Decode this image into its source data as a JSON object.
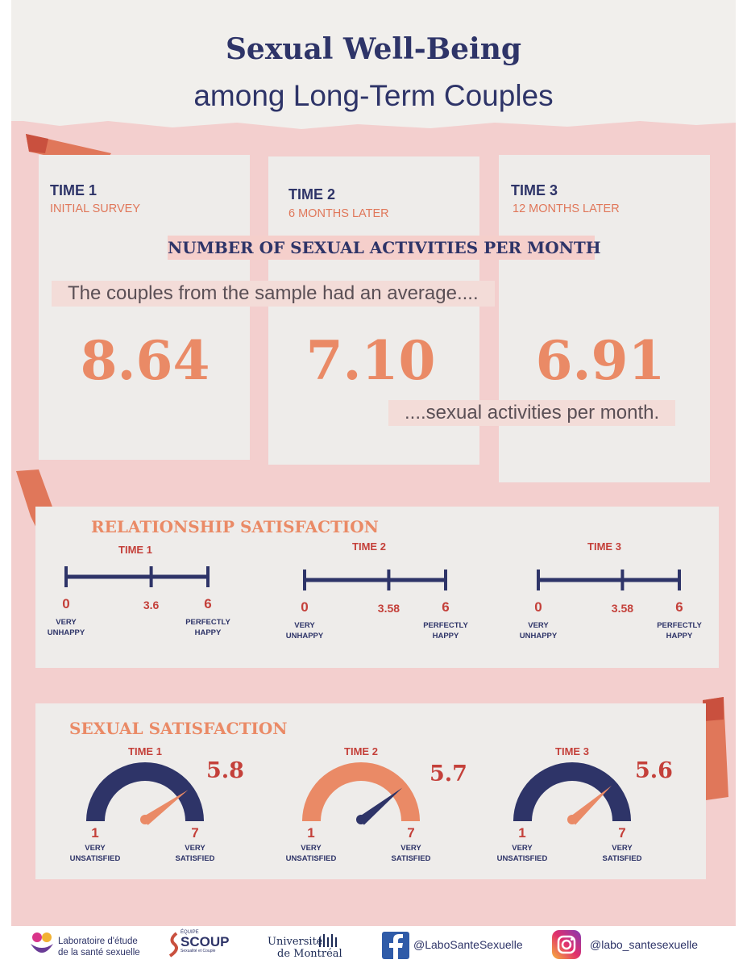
{
  "header": {
    "title": "Sexual Well-Being",
    "subtitle": "among Long-Term Couples"
  },
  "times": [
    {
      "label": "TIME 1",
      "sub": "INITIAL SURVEY"
    },
    {
      "label": "TIME 2",
      "sub": "6 MONTHS LATER"
    },
    {
      "label": "TIME 3",
      "sub": "12 MONTHS LATER"
    }
  ],
  "activities": {
    "banner": "NUMBER OF  SEXUAL ACTIVITIES PER MONTH",
    "intro": "The couples from the sample had an average....",
    "values": [
      "8.64",
      "7.10",
      "6.91"
    ],
    "outro": "....sexual activities per month."
  },
  "relationship": {
    "title": "RELATIONSHIP SATISFACTION",
    "scale_min": "0",
    "scale_max": "6",
    "min_label_line1": "VERY",
    "min_label_line2": "UNHAPPY",
    "max_label_line1": "PERFECTLY",
    "max_label_line2": "HAPPY",
    "items": [
      {
        "time": "TIME 1",
        "value": "3.6",
        "numeric": 3.6
      },
      {
        "time": "TIME 2",
        "value": "3.58",
        "numeric": 3.58
      },
      {
        "time": "TIME 3",
        "value": "3.58",
        "numeric": 3.58
      }
    ]
  },
  "sexual": {
    "title": "SEXUAL SATISFACTION",
    "scale_min": "1",
    "scale_max": "7",
    "min_label_line1": "VERY",
    "min_label_line2": "UNSATISFIED",
    "max_label_line1": "VERY",
    "max_label_line2": "SATISFIED",
    "items": [
      {
        "time": "TIME 1",
        "value": "5.8",
        "numeric": 5.8
      },
      {
        "time": "TIME 2",
        "value": "5.7",
        "numeric": 5.7
      },
      {
        "time": "TIME 3",
        "value": "5.6",
        "numeric": 5.6
      }
    ]
  },
  "footer": {
    "lab_line1": "Laboratoire d'étude",
    "lab_line2": "de la santé sexuelle",
    "scoup_top": "ÉQUIPE",
    "scoup_name": "SCOUP",
    "scoup_sub": "Sexualité et Couple",
    "udem_line1": "Université",
    "udem_line2": "de Montréal",
    "facebook": "@LaboSanteSexuelle",
    "instagram": "@labo_santesexuelle"
  },
  "colors": {
    "navy": "#2e3468",
    "peach": "#ea8a66",
    "red": "#c4403a",
    "pink": "#f3cfce"
  }
}
